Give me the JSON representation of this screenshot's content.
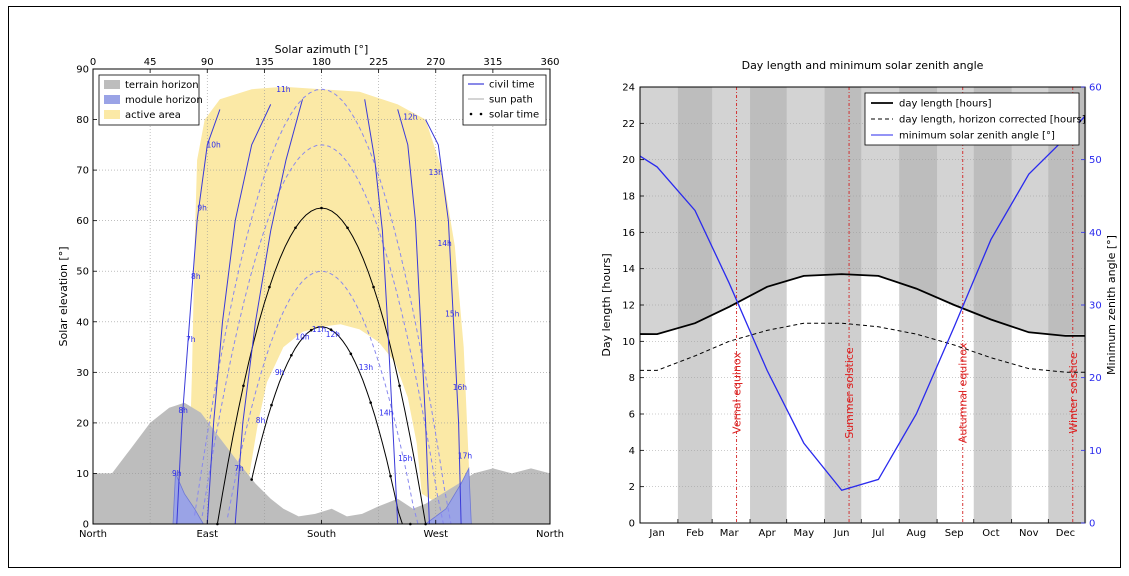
{
  "colors": {
    "terrain": "#bdbdbd",
    "module": "#9aa3e6",
    "active": "#fbe9a6",
    "civil": "#3a3ad8",
    "sunpath": "#8888ee",
    "solar": "#000000",
    "blue_axis": "#2a2aee",
    "event": "#d22222",
    "night_dark": "#aeaeae",
    "night_light": "#cfcfcf"
  },
  "chart_data": [
    {
      "type": "line",
      "title": "",
      "top_xlabel": "Solar azimuth [°]",
      "ylabel": "Solar elevation [°]",
      "xlim": [
        0,
        360
      ],
      "ylim": [
        0,
        90
      ],
      "top_xticks": [
        "0",
        "45",
        "90",
        "135",
        "180",
        "225",
        "270",
        "315",
        "360"
      ],
      "yticks": [
        "0",
        "10",
        "20",
        "30",
        "40",
        "50",
        "60",
        "70",
        "80",
        "90"
      ],
      "bottom_ticks": [
        {
          "label": "North",
          "az": 0
        },
        {
          "label": "East",
          "az": 90
        },
        {
          "label": "South",
          "az": 180
        },
        {
          "label": "West",
          "az": 270
        },
        {
          "label": "North",
          "az": 360
        }
      ],
      "legend_left": [
        {
          "label": "terrain horizon",
          "kind": "terrain"
        },
        {
          "label": "module horizon",
          "kind": "module"
        },
        {
          "label": "active area",
          "kind": "active"
        }
      ],
      "legend_right": [
        {
          "label": "civil time",
          "kind": "civil"
        },
        {
          "label": "sun path",
          "kind": "sunpath"
        },
        {
          "label": "solar time",
          "kind": "solar"
        }
      ],
      "terrain_horizon": [
        [
          0,
          10
        ],
        [
          15,
          10
        ],
        [
          30,
          15
        ],
        [
          45,
          20
        ],
        [
          60,
          23
        ],
        [
          72,
          24
        ],
        [
          85,
          22
        ],
        [
          100,
          17
        ],
        [
          115,
          12
        ],
        [
          128,
          8
        ],
        [
          140,
          5
        ],
        [
          150,
          3
        ],
        [
          162,
          1.5
        ],
        [
          175,
          2
        ],
        [
          188,
          3
        ],
        [
          200,
          1.5
        ],
        [
          212,
          2
        ],
        [
          225,
          3.5
        ],
        [
          240,
          5
        ],
        [
          252,
          3
        ],
        [
          262,
          4
        ],
        [
          275,
          6
        ],
        [
          288,
          8
        ],
        [
          300,
          10
        ],
        [
          315,
          11
        ],
        [
          330,
          10
        ],
        [
          345,
          11
        ],
        [
          360,
          10
        ]
      ],
      "module_horizon_east": [
        [
          63,
          0
        ],
        [
          65,
          10
        ],
        [
          72,
          6
        ],
        [
          80,
          3
        ],
        [
          87,
          0
        ]
      ],
      "module_horizon_west": [
        [
          262,
          0
        ],
        [
          278,
          3
        ],
        [
          290,
          8
        ],
        [
          296,
          11
        ],
        [
          298,
          0
        ]
      ],
      "active_area_outer": [
        [
          75,
          5
        ],
        [
          78,
          30
        ],
        [
          80,
          55
        ],
        [
          82,
          72
        ],
        [
          88,
          80
        ],
        [
          100,
          84
        ],
        [
          125,
          86
        ],
        [
          150,
          86.5
        ],
        [
          180,
          86
        ],
        [
          210,
          85.5
        ],
        [
          240,
          83
        ],
        [
          262,
          80
        ],
        [
          275,
          70
        ],
        [
          285,
          55
        ],
        [
          292,
          35
        ],
        [
          296,
          12
        ],
        [
          298,
          0
        ]
      ],
      "active_area_inner": [
        [
          259,
          6
        ],
        [
          255,
          16
        ],
        [
          248,
          25
        ],
        [
          238,
          32
        ],
        [
          225,
          36
        ],
        [
          210,
          38.5
        ],
        [
          195,
          39.5
        ],
        [
          180,
          39
        ],
        [
          165,
          38
        ],
        [
          150,
          35
        ],
        [
          137,
          28
        ],
        [
          130,
          20
        ],
        [
          126,
          14
        ],
        [
          122,
          8
        ]
      ],
      "hour_labels": [
        {
          "t": "9h",
          "az": 66,
          "el": 9.5
        },
        {
          "t": "8h",
          "az": 71,
          "el": 22
        },
        {
          "t": "7h",
          "az": 77,
          "el": 36
        },
        {
          "t": "8h",
          "az": 81,
          "el": 48.5
        },
        {
          "t": "9h",
          "az": 86,
          "el": 62
        },
        {
          "t": "10h",
          "az": 95,
          "el": 74.5
        },
        {
          "t": "11h",
          "az": 150,
          "el": 85.5
        },
        {
          "t": "12h",
          "az": 250,
          "el": 80
        },
        {
          "t": "13h",
          "az": 270,
          "el": 69
        },
        {
          "t": "14h",
          "az": 277,
          "el": 55
        },
        {
          "t": "15h",
          "az": 283,
          "el": 41
        },
        {
          "t": "16h",
          "az": 289,
          "el": 26.5
        },
        {
          "t": "17h",
          "az": 293,
          "el": 13
        },
        {
          "t": "10h",
          "az": 165,
          "el": 36.5
        },
        {
          "t": "11h",
          "az": 178,
          "el": 38
        },
        {
          "t": "12h",
          "az": 189,
          "el": 37
        },
        {
          "t": "9h",
          "az": 147,
          "el": 29.5
        },
        {
          "t": "8h",
          "az": 132,
          "el": 20
        },
        {
          "t": "7h",
          "az": 115,
          "el": 10.5
        },
        {
          "t": "13h",
          "az": 215,
          "el": 30.5
        },
        {
          "t": "14h",
          "az": 231,
          "el": 21.5
        },
        {
          "t": "15h",
          "az": 246,
          "el": 12.5
        }
      ]
    },
    {
      "type": "line",
      "title": "Day length and minimum solar zenith angle",
      "ylabel": "Day length [hours]",
      "y2label": "Minimum zenith angle [°]",
      "ylim": [
        0,
        24
      ],
      "y2lim": [
        0,
        60
      ],
      "yticks": [
        "0",
        "2",
        "4",
        "6",
        "8",
        "10",
        "12",
        "14",
        "16",
        "18",
        "20",
        "22",
        "24"
      ],
      "y2ticks": [
        "0",
        "10",
        "20",
        "30",
        "40",
        "50",
        "60"
      ],
      "months": [
        "Jan",
        "Feb",
        "Mar",
        "Apr",
        "May",
        "Jun",
        "Jul",
        "Aug",
        "Sep",
        "Oct",
        "Nov",
        "Dec"
      ],
      "series": [
        {
          "name": "day length [hours]",
          "style": "solid-black",
          "values": [
            10.4,
            11.0,
            11.9,
            13.0,
            13.6,
            13.7,
            13.6,
            12.9,
            12.0,
            11.2,
            10.5,
            10.3
          ]
        },
        {
          "name": "day length, horizon corrected [hours]",
          "style": "dashed-black",
          "values": [
            8.4,
            9.2,
            10.0,
            10.6,
            11.0,
            11.0,
            10.8,
            10.4,
            9.8,
            9.1,
            8.5,
            8.3
          ]
        },
        {
          "name": "minimum solar zenith angle [°]",
          "style": "solid-blue",
          "values": [
            49,
            43,
            33,
            21,
            11,
            4.5,
            6,
            15,
            27,
            39,
            48,
            53
          ]
        }
      ],
      "events": [
        {
          "label": "Vernal equinox",
          "day": 80
        },
        {
          "label": "Summer solstice",
          "day": 172
        },
        {
          "label": "Autumnal equinox",
          "day": 265
        },
        {
          "label": "Winter solstice",
          "day": 355
        }
      ]
    }
  ]
}
